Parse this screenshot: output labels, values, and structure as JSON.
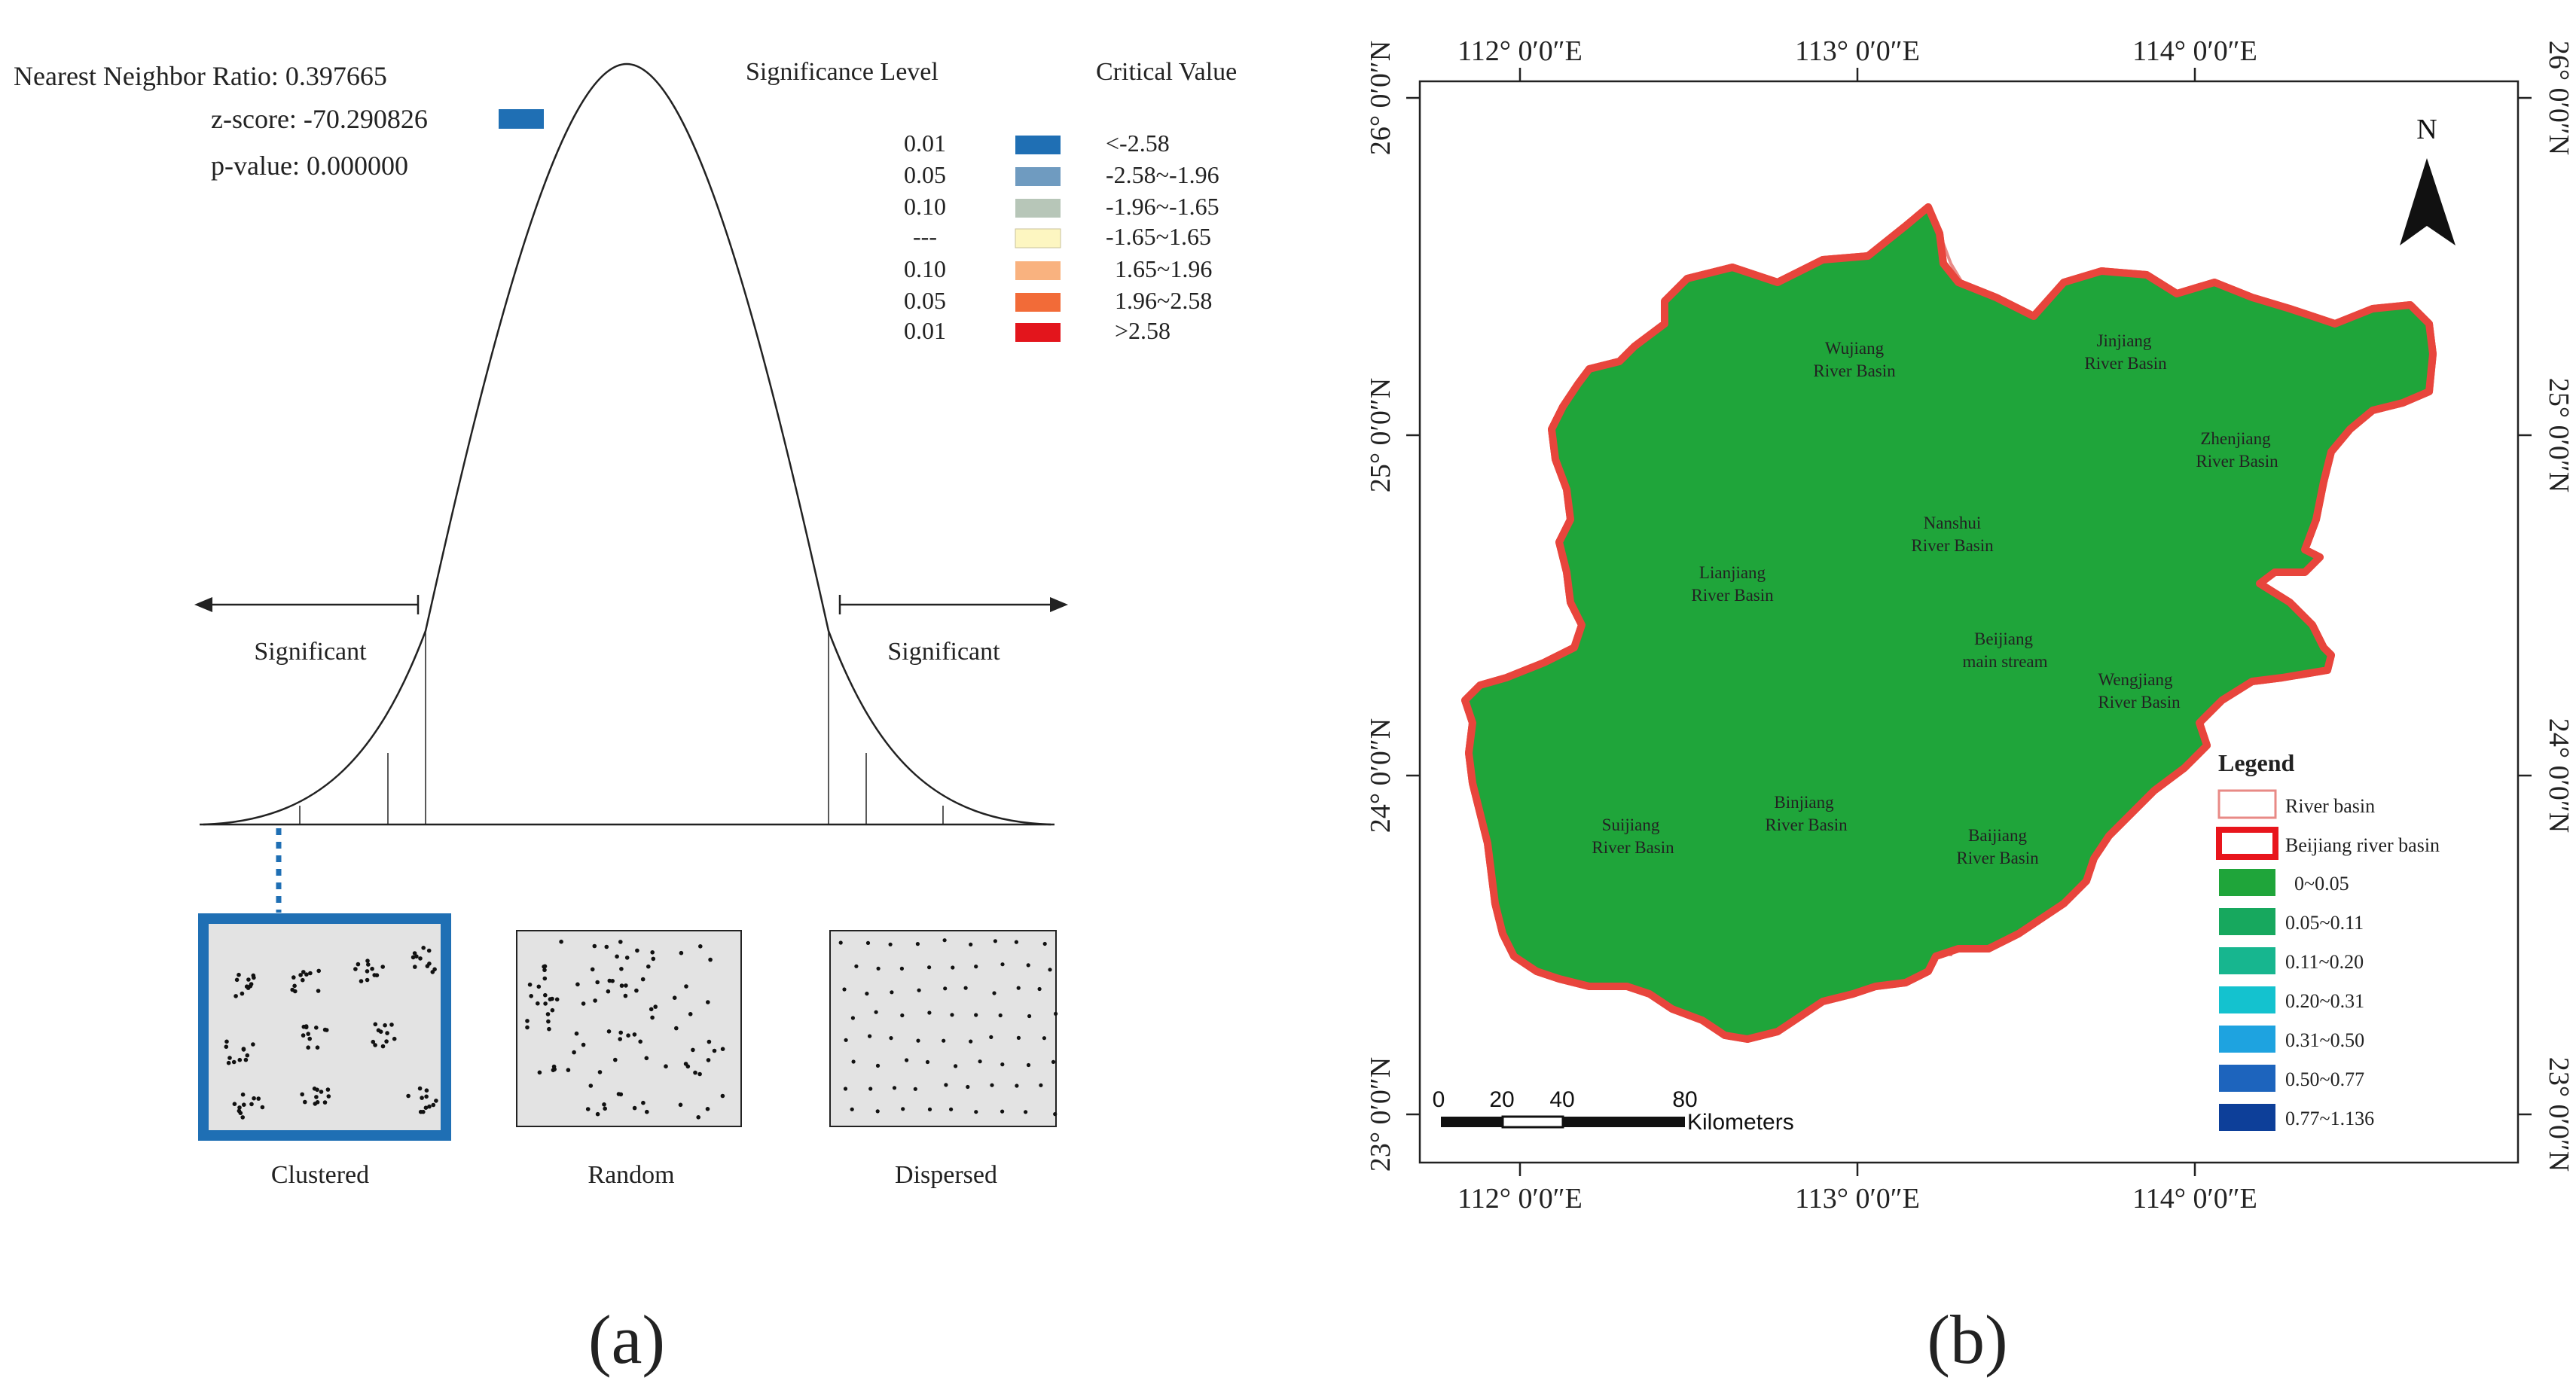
{
  "panel_a": {
    "caption": "(a)",
    "stats": {
      "ratio": "Nearest Neighbor Ratio: 0.397665",
      "zscore": "z-score: -70.290826",
      "pvalue": "p-value: 0.000000"
    },
    "table_headers": {
      "significance": "Significance Level",
      "critical": "Critical Value"
    },
    "legend_rows": [
      {
        "level": "0.01",
        "range": "<-2.58",
        "color": "#1f6fb4"
      },
      {
        "level": "0.05",
        "range": "-2.58~-1.96",
        "color": "#6f9bc0"
      },
      {
        "level": "0.10",
        "range": "-1.96~-1.65",
        "color": "#b7c6b8"
      },
      {
        "level": "---",
        "range": "-1.65~1.65",
        "color": "#fdf6c1"
      },
      {
        "level": "0.10",
        "range": "1.65~1.96",
        "color": "#f9b27f"
      },
      {
        "level": "0.05",
        "range": "1.96~2.58",
        "color": "#f26b38"
      },
      {
        "level": "0.01",
        "range": ">2.58",
        "color": "#e3151c"
      }
    ],
    "significant_left": "Significant",
    "significant_right": "Significant",
    "patterns": {
      "clustered": "Clustered",
      "random": "Random",
      "dispersed": "Dispersed"
    }
  },
  "panel_b": {
    "caption": "(b)",
    "lon_labels": [
      "112° 0′0″E",
      "113° 0′0″E",
      "114° 0′0″E"
    ],
    "lat_labels": [
      "26° 0′0″N",
      "25° 0′0″N",
      "24° 0′0″N",
      "23° 0′0″N"
    ],
    "north": "N",
    "basins": [
      [
        "Wujiang",
        "River Basin"
      ],
      [
        "Jinjiang",
        "River Basin"
      ],
      [
        "Zhenjiang",
        "River Basin"
      ],
      [
        "Nanshui",
        "River Basin"
      ],
      [
        "Lianjiang",
        "River Basin"
      ],
      [
        "Beijiang",
        "main stream"
      ],
      [
        "Wengjiang",
        "River Basin"
      ],
      [
        "Binjiang",
        "River Basin"
      ],
      [
        "Suijiang",
        "River Basin"
      ],
      [
        "Baijiang",
        "River Basin"
      ]
    ],
    "legend": {
      "title": "Legend",
      "river_basin": "River basin",
      "beijiang": "Beijiang river basin",
      "classes": [
        {
          "label": "0~0.05",
          "color": "#1fa53a"
        },
        {
          "label": "0.05~0.11",
          "color": "#17a85e"
        },
        {
          "label": "0.11~0.20",
          "color": "#17b68f"
        },
        {
          "label": "0.20~0.31",
          "color": "#14c2cf"
        },
        {
          "label": "0.31~0.50",
          "color": "#1ea3e0"
        },
        {
          "label": "0.50~0.77",
          "color": "#1d64bd"
        },
        {
          "label": "0.77~1.136",
          "color": "#0d3f99"
        }
      ]
    },
    "scale": {
      "ticks": [
        "0",
        "20",
        "40",
        "80"
      ],
      "unit": "Kilometers"
    }
  }
}
